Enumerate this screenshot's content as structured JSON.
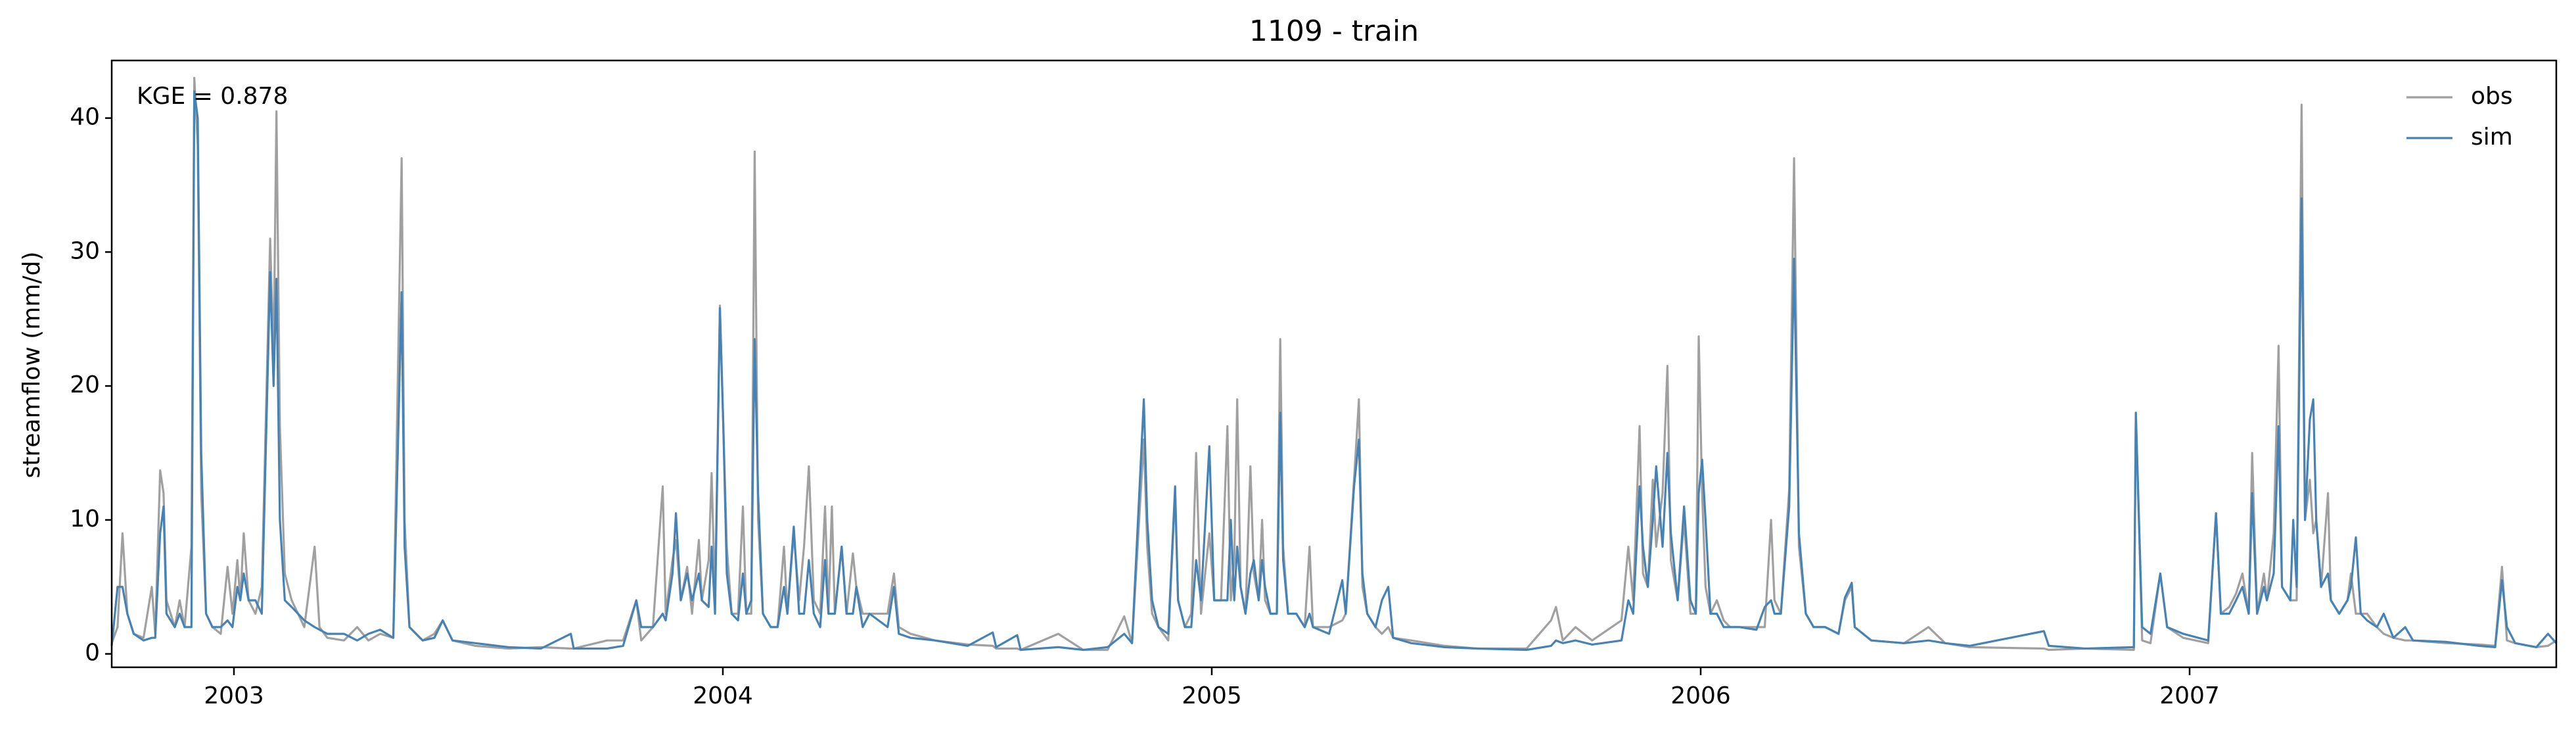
{
  "chart_data": {
    "type": "line",
    "title": "1109 - train",
    "ylabel": "streamflow (mm/d)",
    "annotation": "KGE = 0.878",
    "legend": "upper right",
    "xlim": [
      2002.75,
      2007.75
    ],
    "xticks": [
      2003,
      2004,
      2005,
      2006,
      2007
    ],
    "ylim": [
      -1,
      44.3
    ],
    "yticks": [
      0,
      10,
      20,
      30,
      40
    ],
    "x": [
      2002.75,
      2002.762,
      2002.772,
      2002.782,
      2002.795,
      2002.815,
      2002.832,
      2002.839,
      2002.849,
      2002.856,
      2002.862,
      2002.879,
      2002.889,
      2002.899,
      2002.913,
      2002.919,
      2002.926,
      2002.933,
      2002.943,
      2002.956,
      2002.973,
      2002.987,
      2002.997,
      2003.007,
      2003.013,
      2003.02,
      2003.03,
      2003.044,
      2003.057,
      2003.074,
      2003.081,
      2003.087,
      2003.094,
      2003.104,
      2003.118,
      2003.131,
      2003.144,
      2003.165,
      2003.175,
      2003.191,
      2003.225,
      2003.252,
      2003.275,
      2003.299,
      2003.326,
      2003.343,
      2003.349,
      2003.359,
      2003.386,
      2003.41,
      2003.427,
      2003.447,
      2003.494,
      2003.561,
      2003.628,
      2003.689,
      2003.695,
      2003.763,
      2003.796,
      2003.823,
      2003.833,
      2003.857,
      2003.877,
      2003.883,
      2003.897,
      2003.904,
      2003.914,
      2003.927,
      2003.937,
      2003.951,
      2003.957,
      2003.971,
      2003.977,
      2003.984,
      2003.994,
      2004.001,
      2004.008,
      2004.018,
      2004.031,
      2004.041,
      2004.048,
      2004.058,
      2004.065,
      2004.072,
      2004.082,
      2004.098,
      2004.112,
      2004.125,
      2004.132,
      2004.145,
      2004.156,
      2004.166,
      2004.176,
      2004.186,
      2004.199,
      2004.209,
      2004.216,
      2004.223,
      2004.229,
      2004.243,
      2004.253,
      2004.266,
      2004.273,
      2004.286,
      2004.3,
      2004.337,
      2004.35,
      2004.36,
      2004.384,
      2004.434,
      2004.501,
      2004.552,
      2004.559,
      2004.602,
      2004.609,
      2004.686,
      2004.737,
      2004.787,
      2004.821,
      2004.837,
      2004.861,
      2004.868,
      2004.878,
      2004.891,
      2004.911,
      2004.925,
      2004.931,
      2004.945,
      2004.958,
      2004.968,
      2004.978,
      2004.995,
      2005.005,
      2005.019,
      2005.032,
      2005.039,
      2005.046,
      2005.052,
      2005.059,
      2005.069,
      2005.079,
      2005.086,
      2005.096,
      2005.103,
      2005.109,
      2005.12,
      2005.133,
      2005.14,
      2005.146,
      2005.156,
      2005.173,
      2005.19,
      2005.2,
      2005.207,
      2005.24,
      2005.267,
      2005.274,
      2005.291,
      2005.301,
      2005.308,
      2005.318,
      2005.335,
      2005.348,
      2005.361,
      2005.371,
      2005.408,
      2005.476,
      2005.543,
      2005.644,
      2005.694,
      2005.704,
      2005.718,
      2005.744,
      2005.778,
      2005.838,
      2005.852,
      2005.862,
      2005.875,
      2005.882,
      2005.892,
      2005.902,
      2005.909,
      2005.922,
      2005.932,
      2005.939,
      2005.953,
      2005.966,
      2005.979,
      2005.99,
      2005.996,
      2006.003,
      2006.01,
      2006.02,
      2006.033,
      2006.047,
      2006.06,
      2006.08,
      2006.114,
      2006.131,
      2006.144,
      2006.151,
      2006.164,
      2006.181,
      2006.191,
      2006.201,
      2006.215,
      2006.231,
      2006.255,
      2006.282,
      2006.295,
      2006.309,
      2006.315,
      2006.349,
      2006.416,
      2006.466,
      2006.5,
      2006.55,
      2006.702,
      2006.712,
      2006.786,
      2006.886,
      2006.89,
      2006.903,
      2006.92,
      2006.94,
      2006.954,
      2006.987,
      2007.038,
      2007.054,
      2007.064,
      2007.081,
      2007.095,
      2007.108,
      2007.121,
      2007.128,
      2007.138,
      2007.152,
      2007.158,
      2007.172,
      2007.182,
      2007.189,
      2007.206,
      2007.212,
      2007.219,
      2007.229,
      2007.236,
      2007.246,
      2007.253,
      2007.259,
      2007.269,
      2007.283,
      2007.289,
      2007.306,
      2007.323,
      2007.33,
      2007.34,
      2007.35,
      2007.363,
      2007.383,
      2007.397,
      2007.417,
      2007.441,
      2007.457,
      2007.524,
      2007.592,
      2007.625,
      2007.639,
      2007.649,
      2007.666,
      2007.709,
      2007.733,
      2007.75
    ],
    "series": [
      {
        "name": "obs",
        "color": "#a0a0a0",
        "values": [
          0.8,
          2,
          9,
          3,
          1.5,
          1.2,
          5,
          1.5,
          13.7,
          12,
          4,
          2,
          4,
          2,
          8,
          43,
          38,
          12,
          3,
          2,
          1.5,
          6.5,
          3,
          7,
          4,
          9,
          4,
          3,
          5,
          31,
          22,
          40.5,
          17,
          6,
          4,
          3,
          2,
          8,
          2,
          1.2,
          1,
          2,
          1,
          1.5,
          1.2,
          37,
          10,
          2,
          1,
          1.5,
          2.5,
          1,
          0.6,
          0.4,
          0.5,
          0.4,
          0.4,
          1,
          1,
          4,
          1,
          2,
          12.5,
          3,
          7,
          8.5,
          4,
          6.5,
          3,
          8.5,
          4,
          7,
          13.5,
          4,
          26,
          17,
          8,
          3,
          3,
          11,
          3,
          3,
          37.5,
          10,
          3,
          2,
          2,
          8,
          3,
          9,
          4,
          8,
          14,
          4,
          3,
          11,
          3,
          11,
          3,
          8,
          3,
          7.5,
          5,
          3,
          3,
          3,
          6,
          2,
          1.5,
          1,
          0.7,
          0.6,
          0.4,
          0.4,
          0.3,
          1.5,
          0.3,
          0.3,
          2.8,
          0.8,
          16,
          8,
          3,
          2,
          1,
          12,
          4,
          2,
          3,
          15,
          3,
          9,
          4,
          4,
          17,
          4,
          7,
          19,
          5,
          3,
          14,
          6,
          4,
          10,
          4,
          3,
          3,
          23.5,
          8,
          3,
          3,
          2,
          8,
          2,
          2,
          2.5,
          3,
          13,
          19,
          5,
          3,
          2,
          1.5,
          2,
          1.2,
          1,
          0.6,
          0.4,
          0.4,
          2.5,
          3.5,
          1,
          2,
          1,
          2.5,
          8,
          4,
          17,
          6,
          5,
          13,
          8,
          12,
          21.5,
          7,
          4,
          10,
          3,
          3,
          23.7,
          12,
          5,
          3,
          4,
          2.5,
          2,
          2,
          2,
          2,
          10,
          4,
          3,
          12.3,
          37,
          8,
          3,
          2,
          2,
          1.5,
          4,
          5,
          2,
          1,
          0.8,
          2,
          0.8,
          0.5,
          0.4,
          0.3,
          0.4,
          0.3,
          18,
          1,
          0.8,
          6,
          2,
          1.2,
          0.8,
          10.5,
          3,
          3.5,
          4.5,
          6,
          3,
          15,
          3,
          6,
          4,
          9,
          23,
          5,
          4,
          4,
          4,
          41,
          10,
          13,
          9,
          10,
          5,
          12,
          4,
          3,
          4,
          6,
          3,
          3,
          3,
          2,
          1.5,
          1.2,
          1,
          1,
          0.8,
          0.7,
          0.6,
          6.5,
          1,
          0.8,
          0.5,
          0.6,
          1
        ]
      },
      {
        "name": "sim",
        "color": "#4682b4",
        "values": [
          0.6,
          5,
          5,
          3,
          1.5,
          1,
          1.2,
          1.2,
          9,
          11,
          3,
          2,
          3,
          2,
          2,
          42,
          40,
          15,
          3,
          2,
          2,
          2.5,
          2,
          5,
          4,
          6,
          4,
          4,
          3,
          28.5,
          20,
          28,
          10,
          4,
          3.5,
          3,
          2.5,
          2,
          1.8,
          1.5,
          1.5,
          1,
          1.5,
          1.8,
          1.2,
          27,
          8,
          2,
          1,
          1.2,
          2.5,
          1,
          0.8,
          0.5,
          0.4,
          1.5,
          0.4,
          0.4,
          0.6,
          4,
          2,
          2,
          3,
          2.5,
          6,
          10.5,
          4,
          6,
          4,
          6,
          4,
          3.5,
          8,
          3,
          25.8,
          17,
          6,
          3,
          2.5,
          6,
          3,
          4,
          23.5,
          12,
          3,
          2,
          2,
          5,
          3,
          9.5,
          3,
          3,
          7,
          3,
          2,
          7,
          3,
          3,
          3,
          8,
          3,
          3,
          5,
          2,
          3,
          2,
          5,
          1.5,
          1.2,
          1,
          0.6,
          1.6,
          0.5,
          1.4,
          0.3,
          0.5,
          0.3,
          0.5,
          1.5,
          0.8,
          19,
          10,
          4,
          2,
          1.5,
          12.5,
          4,
          2,
          2,
          7,
          4,
          15.5,
          4,
          4,
          4,
          10,
          4,
          8,
          5,
          3,
          6,
          7,
          4,
          7,
          5,
          3,
          3,
          18,
          7,
          3,
          3,
          2,
          3,
          2,
          1.5,
          5.5,
          3,
          12.5,
          16,
          6,
          3,
          2,
          4,
          5,
          1.2,
          0.8,
          0.5,
          0.4,
          0.3,
          0.6,
          1,
          0.8,
          1,
          0.7,
          1,
          4,
          3,
          12.5,
          8,
          5,
          10,
          14,
          8,
          15,
          9,
          4,
          11,
          4,
          3,
          12,
          14.5,
          10,
          3,
          3,
          2,
          2,
          2,
          1.8,
          3.5,
          4,
          3,
          3,
          11,
          29.5,
          9,
          3,
          2,
          2,
          1.5,
          4.2,
          5.3,
          2,
          1,
          0.8,
          1,
          0.8,
          0.6,
          1.7,
          0.6,
          0.4,
          0.5,
          18,
          2,
          1.5,
          6,
          2,
          1.5,
          1,
          10.5,
          3,
          3,
          4,
          5,
          3,
          12,
          3,
          5,
          4,
          6,
          17,
          5,
          4,
          10,
          5,
          34,
          10,
          17.5,
          19,
          10,
          5,
          6,
          4,
          3,
          4,
          5,
          8.7,
          3,
          2.5,
          2,
          3,
          1.2,
          2,
          1,
          0.9,
          0.6,
          0.5,
          5.5,
          2,
          0.8,
          0.5,
          1.5,
          0.8
        ]
      }
    ]
  }
}
